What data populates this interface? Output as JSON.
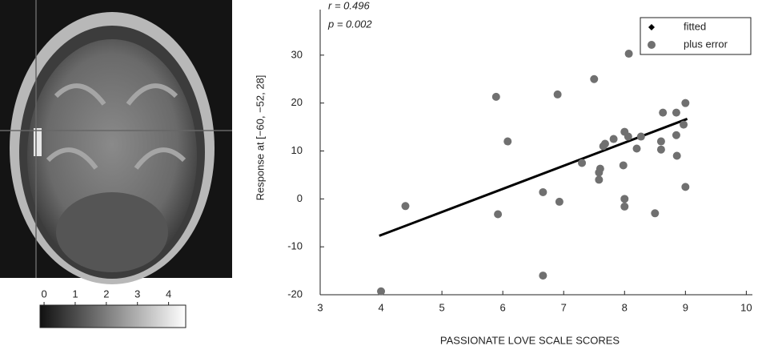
{
  "chart_data": [
    {
      "type": "scatter",
      "annotations": [
        "r = 0.496",
        "p = 0.002"
      ],
      "x_label": "PASSIONATE LOVE SCALE SCORES",
      "y_label": "Response at [−60, −52, 28]",
      "xlim": [
        3,
        10.1
      ],
      "xticks": [
        3,
        4,
        5,
        6,
        7,
        8,
        9,
        10
      ],
      "ylim": [
        -20,
        39.5
      ],
      "yticks": [
        -20,
        -10,
        0,
        10,
        20,
        30
      ],
      "legend": "upper right",
      "series": [
        {
          "name": "fitted",
          "color": "#000000",
          "kind": "line",
          "x": [
            3.97,
            9.03
          ],
          "values": [
            -7.7,
            16.7
          ]
        },
        {
          "name": "plus error",
          "color": "#707070",
          "kind": "points",
          "x": [
            4.0,
            4.4,
            5.89,
            5.92,
            6.08,
            6.66,
            6.66,
            6.9,
            6.93,
            7.3,
            7.5,
            7.58,
            7.58,
            7.6,
            7.65,
            7.68,
            7.82,
            7.98,
            8.0,
            8.0,
            8.0,
            8.06,
            8.07,
            8.2,
            8.27,
            8.5,
            8.6,
            8.6,
            8.63,
            8.85,
            8.85,
            8.86,
            8.97,
            9.0,
            9.0
          ],
          "values": [
            -19.3,
            -1.5,
            21.3,
            -3.2,
            12,
            -16,
            1.4,
            21.8,
            -0.6,
            7.5,
            25,
            5.5,
            4,
            6.3,
            11,
            11.5,
            12.5,
            7,
            14,
            0,
            -1.6,
            13,
            30.3,
            10.5,
            13,
            -3,
            12,
            10.3,
            18,
            18,
            13.3,
            9,
            15.5,
            20,
            2.5
          ]
        }
      ]
    },
    {
      "type": "colorbar",
      "xlim": [
        -0.13,
        4.55
      ],
      "xticks": [
        0,
        1,
        2,
        3,
        4
      ],
      "colors": [
        "#111111",
        "#ffffff"
      ]
    }
  ]
}
